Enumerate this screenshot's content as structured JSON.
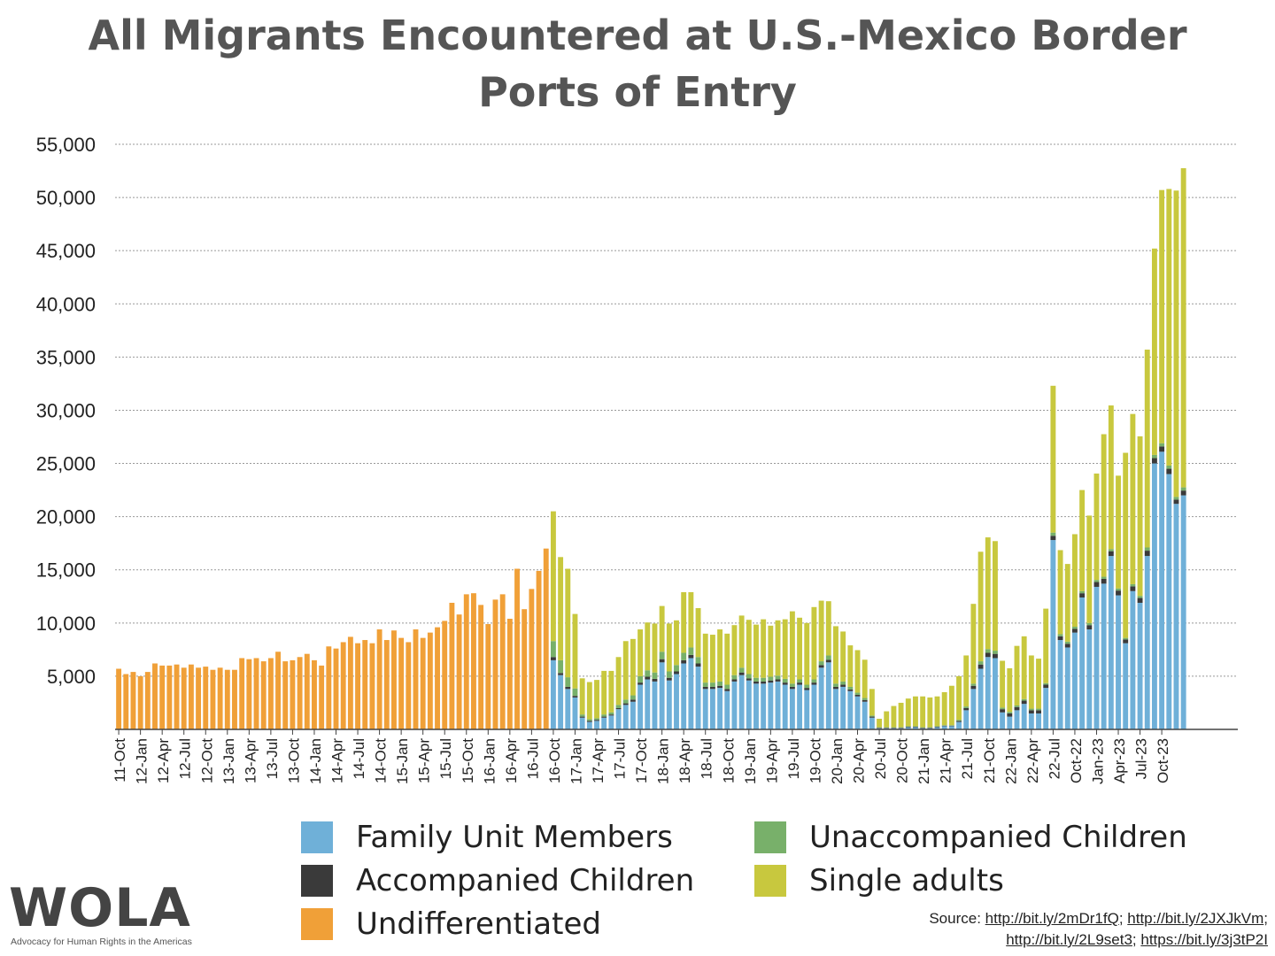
{
  "title_line1": "All Migrants Encountered at U.S.-Mexico Border",
  "title_line2": "Ports of Entry",
  "logo": {
    "text": "WOLA",
    "subtitle": "Advocacy for Human Rights in the Americas"
  },
  "source": {
    "prefix": "Source: ",
    "links": [
      "http://bit.ly/2mDr1fQ",
      "http://bit.ly/2JXJkVm",
      "http://bit.ly/2L9set3",
      "https://bit.ly/3j3tP2I"
    ]
  },
  "colors": {
    "family": "#6fb0d8",
    "accompanied": "#3a3a3a",
    "unaccompanied": "#78b06a",
    "single": "#c8c83e",
    "undiff": "#f0a038",
    "grid": "#999999"
  },
  "legend": [
    {
      "label": "Family Unit Members",
      "color": "#6fb0d8"
    },
    {
      "label": "Unaccompanied Children",
      "color": "#78b06a"
    },
    {
      "label": "Accompanied Children",
      "color": "#3a3a3a"
    },
    {
      "label": "Single adults",
      "color": "#c8c83e"
    },
    {
      "label": "Undifferentiated",
      "color": "#f0a038"
    }
  ],
  "chart_data": {
    "type": "bar",
    "stacked": true,
    "title": "All Migrants Encountered at U.S.-Mexico Border Ports of Entry",
    "ylim": [
      0,
      55000
    ],
    "yticks": [
      5000,
      10000,
      15000,
      20000,
      25000,
      30000,
      35000,
      40000,
      45000,
      50000,
      55000
    ],
    "ytick_labels": [
      "5,000",
      "10,000",
      "15,000",
      "20,000",
      "25,000",
      "30,000",
      "35,000",
      "40,000",
      "45,000",
      "50,000",
      "55,000"
    ],
    "grid": true,
    "legend_position": "bottom",
    "tick_every": 3,
    "xtick_labels": [
      "11-Oct",
      "12-Jan",
      "12-Apr",
      "12-Jul",
      "12-Oct",
      "13-Jan",
      "13-Apr",
      "13-Jul",
      "13-Oct",
      "14-Jan",
      "14-Apr",
      "14-Jul",
      "14-Oct",
      "15-Jan",
      "15-Apr",
      "15-Jul",
      "15-Oct",
      "16-Jan",
      "16-Apr",
      "16-Jul",
      "16-Oct",
      "17-Jan",
      "17-Apr",
      "17-Jul",
      "17-Oct",
      "18-Jan",
      "18-Apr",
      "18-Jul",
      "18-Oct",
      "19-Jan",
      "19-Apr",
      "19-Jul",
      "19-Oct",
      "20-Jan",
      "20-Apr",
      "20-Jul",
      "20-Oct",
      "21-Jan",
      "21-Apr",
      "21-Jul",
      "21-Oct",
      "22-Jan",
      "22-Apr",
      "22-Jul",
      "Oct-22",
      "Jan-23",
      "Apr-23",
      "Jul-23",
      "Oct-23"
    ],
    "series": [
      {
        "name": "Undifferentiated",
        "values": [
          5700,
          5200,
          5400,
          5000,
          5400,
          6200,
          6000,
          6000,
          6100,
          5800,
          6100,
          5800,
          5900,
          5600,
          5800,
          5600,
          5600,
          6700,
          6600,
          6700,
          6400,
          6700,
          7300,
          6400,
          6500,
          6800,
          7100,
          6500,
          6000,
          7800,
          7600,
          8200,
          8700,
          8100,
          8400,
          8100,
          9400,
          8400,
          9300,
          8600,
          8200,
          9400,
          8600,
          9100,
          9600,
          10200,
          11900,
          10800,
          12700,
          12800,
          11700,
          9900,
          12200,
          12700,
          10400,
          15100,
          11300,
          13200,
          14900,
          17000,
          0,
          0,
          0,
          0,
          0,
          0,
          0,
          0,
          0,
          0,
          0,
          0,
          0,
          0,
          0,
          0,
          0,
          0,
          0,
          0,
          0,
          0,
          0,
          0,
          0,
          0,
          0,
          0,
          0,
          0,
          0,
          0,
          0,
          0,
          0,
          0,
          0,
          0,
          0,
          0,
          0,
          0,
          0,
          0,
          0,
          0,
          0,
          0,
          0,
          0,
          0,
          0,
          0,
          0,
          0,
          0,
          0,
          0,
          0,
          0,
          0,
          0,
          0,
          0,
          0,
          0,
          0,
          0,
          0,
          0,
          0,
          0,
          0,
          0,
          0,
          0,
          0,
          0,
          0,
          0,
          0,
          0,
          0,
          0,
          0,
          0,
          0,
          0,
          0,
          0,
          0,
          0,
          0,
          0,
          0
        ]
      },
      {
        "name": "Family Unit Members",
        "values": [
          0,
          0,
          0,
          0,
          0,
          0,
          0,
          0,
          0,
          0,
          0,
          0,
          0,
          0,
          0,
          0,
          0,
          0,
          0,
          0,
          0,
          0,
          0,
          0,
          0,
          0,
          0,
          0,
          0,
          0,
          0,
          0,
          0,
          0,
          0,
          0,
          0,
          0,
          0,
          0,
          0,
          0,
          0,
          0,
          0,
          0,
          0,
          0,
          0,
          0,
          0,
          0,
          0,
          0,
          0,
          0,
          0,
          0,
          0,
          0,
          6500,
          5100,
          3800,
          3000,
          1100,
          700,
          800,
          1100,
          1300,
          1900,
          2300,
          2600,
          4200,
          4700,
          4500,
          6300,
          4600,
          5200,
          6200,
          6700,
          5900,
          3800,
          3800,
          3900,
          3600,
          4500,
          5100,
          4600,
          4300,
          4300,
          4400,
          4500,
          4200,
          3800,
          4200,
          3700,
          4200,
          5800,
          6300,
          3800,
          4000,
          3600,
          3100,
          2600,
          1100,
          100,
          100,
          100,
          100,
          200,
          200,
          100,
          100,
          200,
          300,
          300,
          700,
          1800,
          3800,
          5700,
          6800,
          6700,
          1600,
          1200,
          1800,
          2400,
          1500,
          1500,
          3900,
          17800,
          8400,
          7700,
          9100,
          12400,
          9400,
          13400,
          13700,
          16300,
          12600,
          8100,
          13000,
          11900,
          16300,
          25000,
          26100,
          24000,
          21200,
          22000
        ]
      },
      {
        "name": "Accompanied Children",
        "values": [
          0,
          0,
          0,
          0,
          0,
          0,
          0,
          0,
          0,
          0,
          0,
          0,
          0,
          0,
          0,
          0,
          0,
          0,
          0,
          0,
          0,
          0,
          0,
          0,
          0,
          0,
          0,
          0,
          0,
          0,
          0,
          0,
          0,
          0,
          0,
          0,
          0,
          0,
          0,
          0,
          0,
          0,
          0,
          0,
          0,
          0,
          0,
          0,
          0,
          0,
          0,
          0,
          0,
          0,
          0,
          0,
          0,
          0,
          0,
          0,
          300,
          200,
          200,
          150,
          100,
          100,
          100,
          100,
          100,
          100,
          150,
          200,
          200,
          250,
          250,
          300,
          250,
          250,
          300,
          300,
          300,
          200,
          200,
          200,
          200,
          200,
          250,
          200,
          200,
          200,
          200,
          200,
          200,
          200,
          200,
          200,
          200,
          250,
          250,
          200,
          200,
          150,
          150,
          150,
          100,
          50,
          50,
          50,
          50,
          50,
          50,
          50,
          50,
          50,
          50,
          50,
          100,
          200,
          300,
          400,
          400,
          400,
          300,
          300,
          300,
          300,
          300,
          300,
          300,
          400,
          350,
          350,
          350,
          400,
          400,
          450,
          450,
          450,
          450,
          350,
          450,
          450,
          500,
          500,
          500,
          500,
          400,
          450
        ]
      },
      {
        "name": "Unaccompanied Children",
        "values": [
          0,
          0,
          0,
          0,
          0,
          0,
          0,
          0,
          0,
          0,
          0,
          0,
          0,
          0,
          0,
          0,
          0,
          0,
          0,
          0,
          0,
          0,
          0,
          0,
          0,
          0,
          0,
          0,
          0,
          0,
          0,
          0,
          0,
          0,
          0,
          0,
          0,
          0,
          0,
          0,
          0,
          0,
          0,
          0,
          0,
          0,
          0,
          0,
          0,
          0,
          0,
          0,
          0,
          0,
          0,
          0,
          0,
          0,
          0,
          0,
          1500,
          1200,
          900,
          700,
          200,
          150,
          150,
          200,
          200,
          300,
          350,
          400,
          600,
          600,
          600,
          700,
          600,
          600,
          700,
          700,
          600,
          400,
          400,
          400,
          400,
          400,
          450,
          400,
          350,
          350,
          350,
          350,
          350,
          300,
          300,
          300,
          300,
          350,
          400,
          300,
          300,
          250,
          200,
          200,
          100,
          50,
          50,
          50,
          50,
          50,
          50,
          50,
          50,
          50,
          50,
          50,
          100,
          150,
          200,
          300,
          350,
          300,
          150,
          150,
          150,
          150,
          150,
          150,
          150,
          300,
          200,
          200,
          200,
          200,
          200,
          200,
          200,
          200,
          200,
          150,
          200,
          200,
          300,
          300,
          300,
          300,
          250,
          300
        ]
      },
      {
        "name": "Single adults",
        "values": [
          0,
          0,
          0,
          0,
          0,
          0,
          0,
          0,
          0,
          0,
          0,
          0,
          0,
          0,
          0,
          0,
          0,
          0,
          0,
          0,
          0,
          0,
          0,
          0,
          0,
          0,
          0,
          0,
          0,
          0,
          0,
          0,
          0,
          0,
          0,
          0,
          0,
          0,
          0,
          0,
          0,
          0,
          0,
          0,
          0,
          0,
          0,
          0,
          0,
          0,
          0,
          0,
          0,
          0,
          0,
          0,
          0,
          0,
          0,
          0,
          12200,
          9700,
          10200,
          7000,
          3400,
          3500,
          3600,
          4100,
          3900,
          4500,
          5500,
          5300,
          4400,
          4500,
          4600,
          4300,
          4500,
          4200,
          5700,
          5200,
          4600,
          4600,
          4500,
          4900,
          4800,
          4700,
          4900,
          5100,
          5000,
          5500,
          4800,
          5200,
          5600,
          6800,
          5800,
          5800,
          6800,
          5700,
          5100,
          5400,
          4700,
          3900,
          4000,
          3600,
          2500,
          800,
          1500,
          2000,
          2300,
          2600,
          2800,
          2900,
          2800,
          2800,
          3100,
          3700,
          4100,
          4800,
          7500,
          10300,
          10500,
          10300,
          4400,
          4100,
          5600,
          5900,
          5000,
          4700,
          7000,
          13800,
          7900,
          7300,
          8700,
          9500,
          10100,
          10000,
          13400,
          13500,
          10600,
          17400,
          16000,
          15000,
          18600,
          19400,
          23800,
          26000,
          28800,
          30000
        ]
      }
    ]
  }
}
